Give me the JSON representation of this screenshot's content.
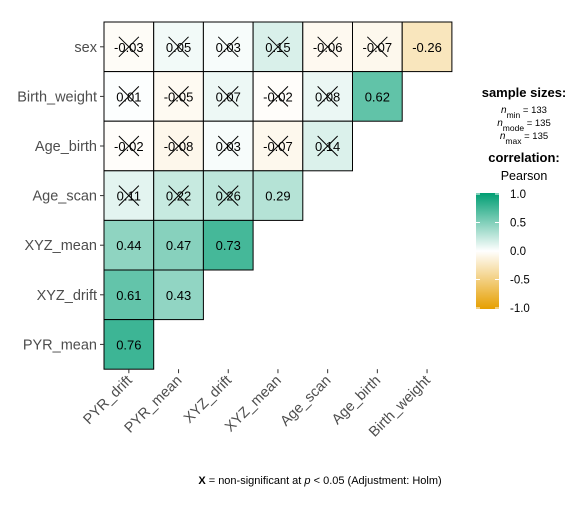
{
  "chart_data": {
    "type": "heatmap",
    "title": "",
    "xlabel": "",
    "ylabel": "",
    "x_labels": [
      "PYR_drift",
      "PYR_mean",
      "XYZ_drift",
      "XYZ_mean",
      "Age_scan",
      "Age_birth",
      "Birth_weight"
    ],
    "y_labels": [
      "sex",
      "Birth_weight",
      "Age_birth",
      "Age_scan",
      "XYZ_mean",
      "XYZ_drift",
      "PYR_mean"
    ],
    "cells": [
      {
        "row": "sex",
        "col": "PYR_drift",
        "value": "-0.03",
        "num": -0.03,
        "significant": false
      },
      {
        "row": "sex",
        "col": "PYR_mean",
        "value": "0.05",
        "num": 0.05,
        "significant": false
      },
      {
        "row": "sex",
        "col": "XYZ_drift",
        "value": "0.03",
        "num": 0.03,
        "significant": false
      },
      {
        "row": "sex",
        "col": "XYZ_mean",
        "value": "0.15",
        "num": 0.15,
        "significant": false
      },
      {
        "row": "sex",
        "col": "Age_scan",
        "value": "-0.06",
        "num": -0.06,
        "significant": false
      },
      {
        "row": "sex",
        "col": "Age_birth",
        "value": "-0.07",
        "num": -0.07,
        "significant": false
      },
      {
        "row": "sex",
        "col": "Birth_weight",
        "value": "-0.26",
        "num": -0.26,
        "significant": true
      },
      {
        "row": "Birth_weight",
        "col": "PYR_drift",
        "value": "0.01",
        "num": 0.01,
        "significant": false
      },
      {
        "row": "Birth_weight",
        "col": "PYR_mean",
        "value": "-0.05",
        "num": -0.05,
        "significant": false
      },
      {
        "row": "Birth_weight",
        "col": "XYZ_drift",
        "value": "0.07",
        "num": 0.07,
        "significant": false
      },
      {
        "row": "Birth_weight",
        "col": "XYZ_mean",
        "value": "-0.02",
        "num": -0.02,
        "significant": false
      },
      {
        "row": "Birth_weight",
        "col": "Age_scan",
        "value": "0.08",
        "num": 0.08,
        "significant": false
      },
      {
        "row": "Birth_weight",
        "col": "Age_birth",
        "value": "0.62",
        "num": 0.62,
        "significant": true
      },
      {
        "row": "Age_birth",
        "col": "PYR_drift",
        "value": "-0.02",
        "num": -0.02,
        "significant": false
      },
      {
        "row": "Age_birth",
        "col": "PYR_mean",
        "value": "-0.08",
        "num": -0.08,
        "significant": false
      },
      {
        "row": "Age_birth",
        "col": "XYZ_drift",
        "value": "0.03",
        "num": 0.03,
        "significant": false
      },
      {
        "row": "Age_birth",
        "col": "XYZ_mean",
        "value": "-0.07",
        "num": -0.07,
        "significant": false
      },
      {
        "row": "Age_birth",
        "col": "Age_scan",
        "value": "0.14",
        "num": 0.14,
        "significant": false
      },
      {
        "row": "Age_scan",
        "col": "PYR_drift",
        "value": "0.11",
        "num": 0.11,
        "significant": false
      },
      {
        "row": "Age_scan",
        "col": "PYR_mean",
        "value": "0.22",
        "num": 0.22,
        "significant": false
      },
      {
        "row": "Age_scan",
        "col": "XYZ_drift",
        "value": "0.26",
        "num": 0.26,
        "significant": false
      },
      {
        "row": "Age_scan",
        "col": "XYZ_mean",
        "value": "0.29",
        "num": 0.29,
        "significant": true
      },
      {
        "row": "XYZ_mean",
        "col": "PYR_drift",
        "value": "0.44",
        "num": 0.44,
        "significant": true
      },
      {
        "row": "XYZ_mean",
        "col": "PYR_mean",
        "value": "0.47",
        "num": 0.47,
        "significant": true
      },
      {
        "row": "XYZ_mean",
        "col": "XYZ_drift",
        "value": "0.73",
        "num": 0.73,
        "significant": true
      },
      {
        "row": "XYZ_drift",
        "col": "PYR_drift",
        "value": "0.61",
        "num": 0.61,
        "significant": true
      },
      {
        "row": "XYZ_drift",
        "col": "PYR_mean",
        "value": "0.43",
        "num": 0.43,
        "significant": true
      },
      {
        "row": "PYR_mean",
        "col": "PYR_drift",
        "value": "0.76",
        "num": 0.76,
        "significant": true
      }
    ],
    "color_scale": {
      "low_color": "#e69f00",
      "mid_color": "#ffffff",
      "high_color": "#009e73",
      "range": [
        -1.0,
        1.0
      ]
    },
    "legend": {
      "placement": "right",
      "sample_sizes_title": "sample sizes:",
      "n_min": {
        "label": "min",
        "text": " = 133"
      },
      "n_mode": {
        "label": "mode",
        "text": " = 135"
      },
      "n_max": {
        "label": "max",
        "text": " = 135"
      },
      "correlation_title": "correlation:",
      "method": "Pearson",
      "ticks": [
        {
          "value": 1.0,
          "label": "1.0"
        },
        {
          "value": 0.5,
          "label": "0.5"
        },
        {
          "value": 0.0,
          "label": "0.0"
        },
        {
          "value": -0.5,
          "label": "-0.5"
        },
        {
          "value": -1.0,
          "label": "-1.0"
        }
      ]
    },
    "caption": {
      "bold_x": "X",
      "text1": " = non-significant at ",
      "p": "p",
      "text2": " < 0.05 (Adjustment: Holm)"
    }
  }
}
